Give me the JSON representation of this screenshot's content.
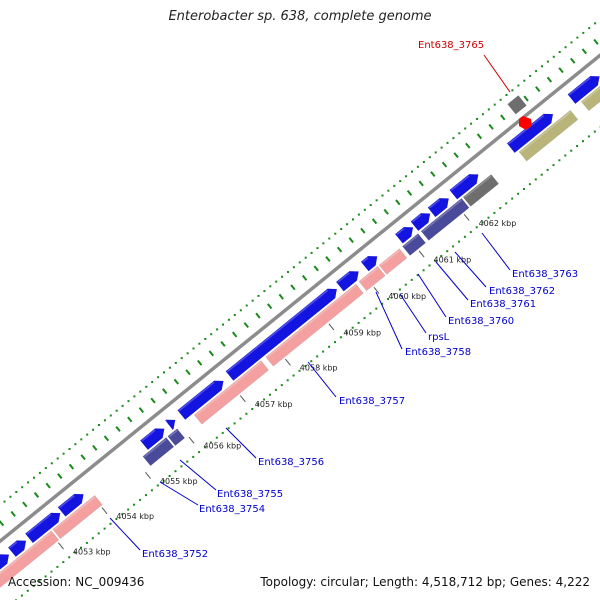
{
  "title": "Enterobacter sp. 638, complete genome",
  "accession": "Accession: NC_009436",
  "summary": "Topology: circular; Length: 4,518,712 bp; Genes: 4,222",
  "colors": {
    "backbone": "#8c8c8c",
    "cds_forward": "#1414e0",
    "cds_reverse": "#f4a0a0",
    "rrna": "#4a4a9a",
    "pseudo": "#6e6e6e",
    "other": "#b8b47a",
    "highlight": "#ff0000",
    "gene_label": "#0000cc",
    "highlight_label": "#cc0000",
    "gc_skew": "#1a8a1a"
  },
  "kbp_ticks": [
    "4053 kbp",
    "4054 kbp",
    "4055 kbp",
    "4056 kbp",
    "4057 kbp",
    "4058 kbp",
    "4059 kbp",
    "4060 kbp",
    "4061 kbp",
    "4062 kbp"
  ],
  "gene_labels": [
    {
      "text": "Ent638_3752",
      "color": "blue"
    },
    {
      "text": "Ent638_3754",
      "color": "blue"
    },
    {
      "text": "Ent638_3755",
      "color": "blue"
    },
    {
      "text": "Ent638_3756",
      "color": "blue"
    },
    {
      "text": "Ent638_3757",
      "color": "blue"
    },
    {
      "text": "Ent638_3758",
      "color": "blue"
    },
    {
      "text": "rpsL",
      "color": "blue"
    },
    {
      "text": "Ent638_3760",
      "color": "blue"
    },
    {
      "text": "Ent638_3761",
      "color": "blue"
    },
    {
      "text": "Ent638_3762",
      "color": "blue"
    },
    {
      "text": "Ent638_3763",
      "color": "blue"
    },
    {
      "text": "Ent638_3765",
      "color": "red"
    }
  ]
}
